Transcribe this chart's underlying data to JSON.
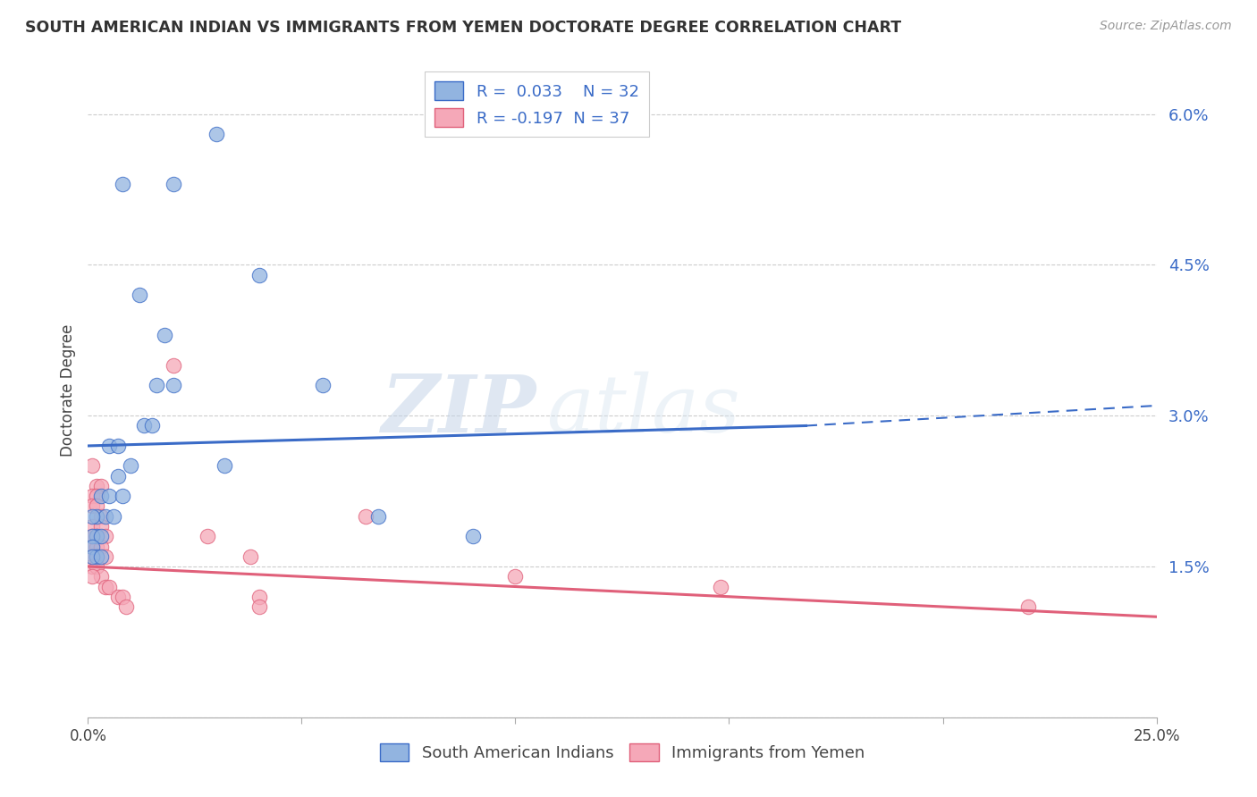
{
  "title": "SOUTH AMERICAN INDIAN VS IMMIGRANTS FROM YEMEN DOCTORATE DEGREE CORRELATION CHART",
  "source": "Source: ZipAtlas.com",
  "ylabel": "Doctorate Degree",
  "xmin": 0.0,
  "xmax": 0.25,
  "ymin": 0.0,
  "ymax": 0.065,
  "yticks": [
    0.0,
    0.015,
    0.03,
    0.045,
    0.06
  ],
  "ytick_labels": [
    "",
    "1.5%",
    "3.0%",
    "4.5%",
    "6.0%"
  ],
  "xticks": [
    0.0,
    0.05,
    0.1,
    0.15,
    0.2,
    0.25
  ],
  "xtick_labels": [
    "0.0%",
    "",
    "",
    "",
    "",
    "25.0%"
  ],
  "legend1_label": "South American Indians",
  "legend2_label": "Immigrants from Yemen",
  "r1": 0.033,
  "n1": 32,
  "r2": -0.197,
  "n2": 37,
  "blue_color": "#92b4e0",
  "pink_color": "#f5a8b8",
  "blue_line_color": "#3a6bc7",
  "pink_line_color": "#e0607a",
  "blue_scatter": [
    [
      0.008,
      0.053
    ],
    [
      0.02,
      0.053
    ],
    [
      0.03,
      0.058
    ],
    [
      0.04,
      0.044
    ],
    [
      0.055,
      0.033
    ],
    [
      0.012,
      0.042
    ],
    [
      0.018,
      0.038
    ],
    [
      0.016,
      0.033
    ],
    [
      0.02,
      0.033
    ],
    [
      0.013,
      0.029
    ],
    [
      0.015,
      0.029
    ],
    [
      0.005,
      0.027
    ],
    [
      0.007,
      0.027
    ],
    [
      0.01,
      0.025
    ],
    [
      0.007,
      0.024
    ],
    [
      0.003,
      0.022
    ],
    [
      0.005,
      0.022
    ],
    [
      0.008,
      0.022
    ],
    [
      0.002,
      0.02
    ],
    [
      0.004,
      0.02
    ],
    [
      0.006,
      0.02
    ],
    [
      0.001,
      0.02
    ],
    [
      0.002,
      0.018
    ],
    [
      0.001,
      0.018
    ],
    [
      0.003,
      0.018
    ],
    [
      0.001,
      0.017
    ],
    [
      0.002,
      0.016
    ],
    [
      0.001,
      0.016
    ],
    [
      0.003,
      0.016
    ],
    [
      0.032,
      0.025
    ],
    [
      0.068,
      0.02
    ],
    [
      0.09,
      0.018
    ]
  ],
  "pink_scatter": [
    [
      0.001,
      0.025
    ],
    [
      0.002,
      0.023
    ],
    [
      0.003,
      0.023
    ],
    [
      0.001,
      0.022
    ],
    [
      0.002,
      0.022
    ],
    [
      0.001,
      0.021
    ],
    [
      0.002,
      0.021
    ],
    [
      0.003,
      0.02
    ],
    [
      0.001,
      0.019
    ],
    [
      0.003,
      0.019
    ],
    [
      0.001,
      0.018
    ],
    [
      0.002,
      0.018
    ],
    [
      0.004,
      0.018
    ],
    [
      0.001,
      0.017
    ],
    [
      0.002,
      0.017
    ],
    [
      0.003,
      0.017
    ],
    [
      0.001,
      0.016
    ],
    [
      0.002,
      0.016
    ],
    [
      0.004,
      0.016
    ],
    [
      0.001,
      0.015
    ],
    [
      0.002,
      0.015
    ],
    [
      0.003,
      0.014
    ],
    [
      0.001,
      0.014
    ],
    [
      0.004,
      0.013
    ],
    [
      0.005,
      0.013
    ],
    [
      0.007,
      0.012
    ],
    [
      0.008,
      0.012
    ],
    [
      0.009,
      0.011
    ],
    [
      0.02,
      0.035
    ],
    [
      0.028,
      0.018
    ],
    [
      0.038,
      0.016
    ],
    [
      0.04,
      0.012
    ],
    [
      0.04,
      0.011
    ],
    [
      0.065,
      0.02
    ],
    [
      0.1,
      0.014
    ],
    [
      0.148,
      0.013
    ],
    [
      0.22,
      0.011
    ]
  ],
  "blue_trendline_solid": [
    [
      0.0,
      0.027
    ],
    [
      0.168,
      0.029
    ]
  ],
  "blue_trendline_dashed": [
    [
      0.168,
      0.029
    ],
    [
      0.25,
      0.031
    ]
  ],
  "pink_trendline": [
    [
      0.0,
      0.015
    ],
    [
      0.25,
      0.01
    ]
  ],
  "watermark_zip": "ZIP",
  "watermark_atlas": "atlas",
  "background_color": "#FFFFFF",
  "grid_color": "#CCCCCC",
  "title_color": "#333333",
  "source_color": "#999999"
}
